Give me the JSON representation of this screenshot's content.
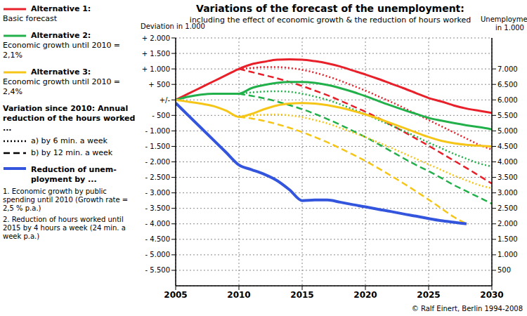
{
  "chart_data": {
    "type": "line",
    "title": "Variations of the forecast of the unemployment:",
    "subtitle": "including the effect of economic growth & the reduction of hours worked",
    "y_label": "Deviation in 1.000",
    "y2_label": "Unemployment in 1.000",
    "x": [
      2005,
      2006,
      2007,
      2008,
      2009,
      2010,
      2011,
      2012,
      2013,
      2014,
      2015,
      2016,
      2017,
      2018,
      2019,
      2020,
      2021,
      2022,
      2023,
      2024,
      2025,
      2026,
      2027,
      2028,
      2029,
      2030
    ],
    "xlim": [
      2005,
      2030
    ],
    "xticks": [
      2005,
      2010,
      2015,
      2020,
      2025,
      2030
    ],
    "ylim": [
      -6000,
      2000
    ],
    "yticks": [
      {
        "value": 2000,
        "label": "+ 2.000"
      },
      {
        "value": 1500,
        "label": "+ 1.500"
      },
      {
        "value": 1000,
        "label": "+ 1.000"
      },
      {
        "value": 500,
        "label": "+ 500"
      },
      {
        "value": 0,
        "label": "+/-"
      },
      {
        "value": -500,
        "label": "- 500"
      },
      {
        "value": -1000,
        "label": "- 1.000"
      },
      {
        "value": -1500,
        "label": "- 1.500"
      },
      {
        "value": -2000,
        "label": "- 2.000"
      },
      {
        "value": -2500,
        "label": "- 2.500"
      },
      {
        "value": -3000,
        "label": "- 3.000"
      },
      {
        "value": -3500,
        "label": "- 3.500"
      },
      {
        "value": -4000,
        "label": "- 4.000"
      },
      {
        "value": -4500,
        "label": "- 4.500"
      },
      {
        "value": -5000,
        "label": "- 5.000"
      },
      {
        "value": -5500,
        "label": "- 5.500"
      }
    ],
    "y2lim": [
      0,
      8000
    ],
    "y2ticks": [
      {
        "value": 7000,
        "label": "7.000"
      },
      {
        "value": 6500,
        "label": "6.500"
      },
      {
        "value": 6000,
        "label": "6.000"
      },
      {
        "value": 5500,
        "label": "5.500"
      },
      {
        "value": 5000,
        "label": "5.000"
      },
      {
        "value": 4500,
        "label": "4.500"
      },
      {
        "value": 4000,
        "label": "4.000"
      },
      {
        "value": 3500,
        "label": "3.500"
      },
      {
        "value": 3000,
        "label": "3.000"
      },
      {
        "value": 2500,
        "label": "2.500"
      },
      {
        "value": 2000,
        "label": "2.000"
      },
      {
        "value": 1500,
        "label": "1.500"
      },
      {
        "value": 1000,
        "label": "1.000"
      },
      500
    ],
    "grid": true,
    "variations": {
      "title": "Variation since 2010: Annual reduction of the hours worked ...",
      "items": [
        {
          "label": "a) by 6 min. a week",
          "line_style": "dotted"
        },
        {
          "label": "b) by 12 min. a week",
          "line_style": "dashed"
        }
      ]
    },
    "series": [
      {
        "name": "Alternative 1:",
        "description": "Basic forecast",
        "color": "#e8202a",
        "line_style": "solid",
        "values": [
          0,
          200,
          400,
          600,
          800,
          1000,
          1150,
          1230,
          1300,
          1310,
          1300,
          1250,
          1180,
          1080,
          950,
          820,
          680,
          530,
          380,
          220,
          60,
          -50,
          -180,
          -280,
          -350,
          -420
        ],
        "variants": [
          {
            "line_style": "dotted",
            "values": [
              null,
              null,
              null,
              null,
              null,
              1000,
              1030,
              1060,
              1060,
              1030,
              970,
              880,
              760,
              620,
              460,
              300,
              120,
              -60,
              -250,
              -450,
              -650,
              -850,
              -1050,
              -1250,
              -1450,
              -1600
            ]
          },
          {
            "line_style": "dashed",
            "values": [
              null,
              null,
              null,
              null,
              null,
              1000,
              900,
              800,
              700,
              580,
              450,
              300,
              150,
              -20,
              -200,
              -380,
              -580,
              -800,
              -1020,
              -1250,
              -1480,
              -1720,
              -1960,
              -2200,
              -2450,
              -2700
            ]
          }
        ]
      },
      {
        "name": "Alternative 2:",
        "description": "Economic growth until 2010 = 2,1%",
        "color": "#22b04b",
        "line_style": "solid",
        "values": [
          0,
          100,
          170,
          200,
          200,
          200,
          380,
          480,
          550,
          580,
          580,
          550,
          480,
          380,
          260,
          120,
          -30,
          -180,
          -320,
          -450,
          -580,
          -670,
          -750,
          -820,
          -880,
          -950
        ],
        "variants": [
          {
            "line_style": "dotted",
            "values": [
              null,
              null,
              null,
              null,
              null,
              200,
              240,
              270,
              280,
              260,
              200,
              110,
              0,
              -140,
              -300,
              -460,
              -640,
              -820,
              -1000,
              -1180,
              -1380,
              -1560,
              -1740,
              -1900,
              -2050,
              -2150
            ]
          },
          {
            "line_style": "dashed",
            "values": [
              null,
              null,
              null,
              null,
              null,
              200,
              130,
              50,
              -50,
              -170,
              -300,
              -450,
              -620,
              -800,
              -1000,
              -1200,
              -1420,
              -1650,
              -1880,
              -2100,
              -2300,
              -2520,
              -2750,
              -2950,
              -3150,
              -3350
            ]
          }
        ]
      },
      {
        "name": "Alternative 3:",
        "description": "Economic growth until  2010 = 2,4%",
        "color": "#f5c518",
        "line_style": "solid",
        "values": [
          0,
          -60,
          -120,
          -200,
          -350,
          -550,
          -450,
          -300,
          -180,
          -120,
          -100,
          -120,
          -170,
          -250,
          -350,
          -470,
          -600,
          -750,
          -900,
          -1050,
          -1200,
          -1320,
          -1400,
          -1450,
          -1480,
          -1500
        ],
        "variants": [
          {
            "line_style": "dotted",
            "values": [
              null,
              null,
              null,
              null,
              null,
              -550,
              -500,
              -480,
              -470,
              -500,
              -560,
              -650,
              -760,
              -900,
              -1050,
              -1200,
              -1370,
              -1540,
              -1720,
              -1900,
              -2080,
              -2260,
              -2440,
              -2600,
              -2750,
              -2850
            ]
          },
          {
            "line_style": "dashed",
            "values": [
              null,
              null,
              null,
              null,
              null,
              -550,
              -600,
              -680,
              -780,
              -900,
              -1040,
              -1200,
              -1370,
              -1560,
              -1760,
              -1970,
              -2200,
              -2440,
              -2690,
              -2950,
              -3220,
              -3500,
              -3780,
              -4000,
              null,
              null
            ]
          }
        ]
      },
      {
        "name": "Reduction of unem-ployment by ...",
        "notes": [
          "1. Economic growth by public spending until 2010 (Growth rate = 2,5 % p.a.)",
          "2. Reduction of hours worked until 2015 by 4 hours a week (24 min. a week p.a.)"
        ],
        "color": "#3355dd",
        "line_style": "solid",
        "values": [
          -100,
          -500,
          -900,
          -1300,
          -1700,
          -2100,
          -2250,
          -2400,
          -2600,
          -2900,
          -3250,
          -3230,
          -3230,
          -3300,
          -3380,
          -3450,
          -3530,
          -3600,
          -3680,
          -3750,
          -3830,
          -3900,
          -3950,
          -4000,
          null,
          null
        ],
        "variants": []
      }
    ],
    "annotations": [
      "© Ralf Einert, Berlin 1994-2008"
    ]
  }
}
